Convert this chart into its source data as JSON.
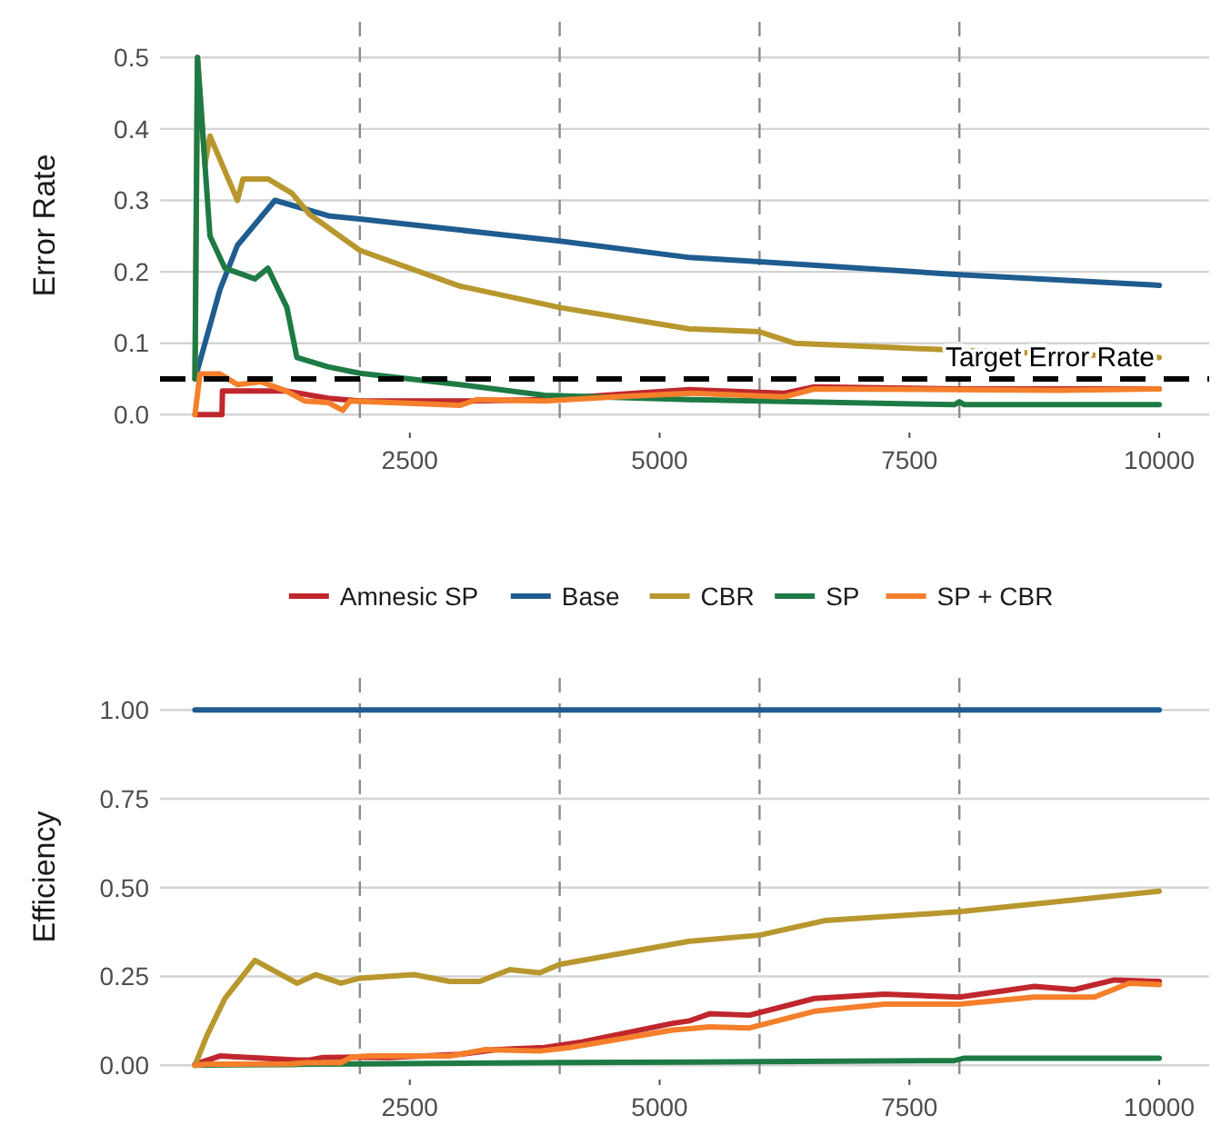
{
  "chart_data": [
    {
      "type": "line",
      "ylabel": "Error Rate",
      "xlim": [
        0,
        10500
      ],
      "xticks": [
        2500,
        5000,
        7500,
        10000
      ],
      "ylim": [
        -0.02,
        0.55
      ],
      "yticks": [
        {
          "value": 0,
          "label": "0.0"
        },
        {
          "value": 0.1,
          "label": "0.1"
        },
        {
          "value": 0.2,
          "label": "0.2"
        },
        {
          "value": 0.3,
          "label": "0.3"
        },
        {
          "value": 0.4,
          "label": "0.4"
        },
        {
          "value": 0.5,
          "label": "0.5"
        }
      ],
      "grid": "y",
      "legend": "bottom",
      "line_style": "solid",
      "marker": "none",
      "ref_lines": [
        {
          "axis": "y",
          "value": 0.05,
          "label": "Target Error Rate",
          "color": "#000000",
          "line_style": "dashed"
        },
        {
          "axis": "x",
          "value": 2000,
          "color": "#8c8c8c",
          "line_style": "dashed"
        },
        {
          "axis": "x",
          "value": 4000,
          "color": "#8c8c8c",
          "line_style": "dashed"
        },
        {
          "axis": "x",
          "value": 6000,
          "color": "#8c8c8c",
          "line_style": "dashed"
        },
        {
          "axis": "x",
          "value": 8000,
          "color": "#8c8c8c",
          "line_style": "dashed"
        }
      ],
      "series": [
        {
          "name": "Amnesic SP",
          "color": "#c0272d",
          "x": [
            350,
            620,
            625,
            1270,
            1680,
            2000,
            3100,
            3850,
            4450,
            5300,
            6250,
            6550,
            8000,
            10000
          ],
          "values": [
            0,
            0,
            0.033,
            0.033,
            0.023,
            0.019,
            0.019,
            0.021,
            0.027,
            0.035,
            0.03,
            0.039,
            0.036,
            0.036
          ]
        },
        {
          "name": "Base",
          "color": "#1f5c8f",
          "x": [
            350,
            600,
            775,
            1150,
            1700,
            2000,
            4000,
            5300,
            6000,
            8000,
            10000
          ],
          "values": [
            0.05,
            0.175,
            0.237,
            0.3,
            0.278,
            0.274,
            0.243,
            0.22,
            0.214,
            0.196,
            0.181
          ]
        },
        {
          "name": "CBR",
          "color": "#b8972e",
          "x": [
            350,
            375,
            450,
            500,
            775,
            830,
            1080,
            1320,
            1500,
            2000,
            3000,
            4000,
            5300,
            6000,
            6350,
            8000,
            10000
          ],
          "values": [
            0.05,
            0.5,
            0.35,
            0.39,
            0.3,
            0.33,
            0.33,
            0.31,
            0.28,
            0.23,
            0.18,
            0.15,
            0.12,
            0.116,
            0.1,
            0.09,
            0.08
          ]
        },
        {
          "name": "SP",
          "color": "#1e7a45",
          "x": [
            350,
            375,
            470,
            500,
            650,
            950,
            1080,
            1270,
            1370,
            1680,
            2000,
            3000,
            3850,
            5300,
            6000,
            7950,
            8000,
            8050,
            10000
          ],
          "values": [
            0.05,
            0.5,
            0.31,
            0.25,
            0.205,
            0.19,
            0.205,
            0.15,
            0.08,
            0.067,
            0.058,
            0.042,
            0.027,
            0.021,
            0.019,
            0.014,
            0.018,
            0.014,
            0.014
          ]
        },
        {
          "name": "SP + CBR",
          "color": "#f57f2a",
          "x": [
            350,
            400,
            600,
            775,
            1010,
            1265,
            1450,
            1680,
            1830,
            1900,
            3000,
            3170,
            3850,
            4550,
            5300,
            6250,
            6550,
            8000,
            9000,
            10000
          ],
          "values": [
            0,
            0.057,
            0.057,
            0.042,
            0.046,
            0.033,
            0.019,
            0.017,
            0.006,
            0.019,
            0.013,
            0.021,
            0.019,
            0.025,
            0.03,
            0.025,
            0.036,
            0.035,
            0.034,
            0.036
          ]
        }
      ]
    },
    {
      "type": "line",
      "ylabel": "Efficiency",
      "xlim": [
        0,
        10500
      ],
      "xticks": [
        2500,
        5000,
        7500,
        10000
      ],
      "ylim": [
        -0.03,
        1.09
      ],
      "yticks": [
        {
          "value": 0,
          "label": "0.00"
        },
        {
          "value": 0.25,
          "label": "0.25"
        },
        {
          "value": 0.5,
          "label": "0.50"
        },
        {
          "value": 0.75,
          "label": "0.75"
        },
        {
          "value": 1,
          "label": "1.00"
        }
      ],
      "grid": "y",
      "line_style": "solid",
      "marker": "none",
      "ref_lines": [
        {
          "axis": "x",
          "value": 2000,
          "color": "#8c8c8c",
          "line_style": "dashed"
        },
        {
          "axis": "x",
          "value": 4000,
          "color": "#8c8c8c",
          "line_style": "dashed"
        },
        {
          "axis": "x",
          "value": 6000,
          "color": "#8c8c8c",
          "line_style": "dashed"
        },
        {
          "axis": "x",
          "value": 8000,
          "color": "#8c8c8c",
          "line_style": "dashed"
        }
      ],
      "series": [
        {
          "color": "#c0272d",
          "x": [
            350,
            600,
            900,
            1370,
            1500,
            1630,
            2000,
            2280,
            3000,
            3370,
            3850,
            4230,
            5130,
            5300,
            5500,
            5900,
            6550,
            7250,
            8000,
            8750,
            9150,
            9550,
            10000
          ],
          "values": [
            0.003,
            0.026,
            0.022,
            0.015,
            0.015,
            0.022,
            0.023,
            0.022,
            0.031,
            0.044,
            0.05,
            0.066,
            0.118,
            0.125,
            0.145,
            0.141,
            0.188,
            0.2,
            0.192,
            0.222,
            0.213,
            0.24,
            0.236
          ]
        },
        {
          "color": "#1f5c8f",
          "x": [
            350,
            10000
          ],
          "values": [
            1,
            1
          ]
        },
        {
          "color": "#b8972e",
          "x": [
            350,
            470,
            650,
            950,
            1370,
            1560,
            1810,
            2000,
            2540,
            2900,
            3200,
            3500,
            3800,
            4000,
            5300,
            6000,
            6650,
            8000,
            10000
          ],
          "values": [
            0,
            0.084,
            0.188,
            0.295,
            0.231,
            0.255,
            0.231,
            0.245,
            0.255,
            0.236,
            0.236,
            0.269,
            0.26,
            0.284,
            0.349,
            0.366,
            0.407,
            0.432,
            0.49
          ]
        },
        {
          "color": "#1e7a45",
          "x": [
            350,
            470,
            1320,
            1450,
            2000,
            3000,
            4000,
            5300,
            6000,
            7950,
            8050,
            10000
          ],
          "values": [
            0,
            0.001,
            0.002,
            0.003,
            0.004,
            0.006,
            0.008,
            0.009,
            0.01,
            0.013,
            0.02,
            0.02
          ]
        },
        {
          "color": "#f57f2a",
          "x": [
            350,
            470,
            1320,
            1450,
            1810,
            1920,
            2100,
            2900,
            3260,
            3800,
            4100,
            5130,
            5500,
            5900,
            6550,
            7250,
            8000,
            8750,
            9350,
            9700,
            10000
          ],
          "values": [
            0,
            0.003,
            0.004,
            0.007,
            0.007,
            0.023,
            0.026,
            0.026,
            0.044,
            0.04,
            0.05,
            0.099,
            0.108,
            0.105,
            0.152,
            0.172,
            0.172,
            0.192,
            0.192,
            0.231,
            0.227
          ]
        }
      ]
    }
  ]
}
